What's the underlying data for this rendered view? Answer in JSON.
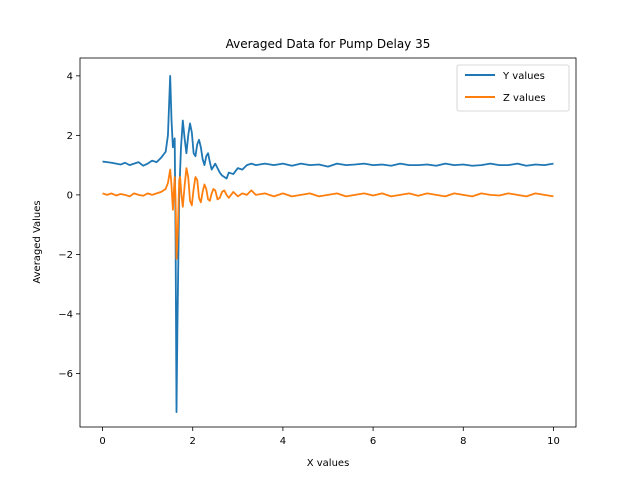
{
  "chart_data": {
    "type": "line",
    "title": "Averaged Data for Pump Delay 35",
    "xlabel": "X values",
    "ylabel": "Averaged Values",
    "xlim": [
      -0.5,
      10.5
    ],
    "ylim": [
      -7.8,
      4.6
    ],
    "xticks": [
      0,
      2,
      4,
      6,
      8,
      10
    ],
    "xtick_labels": [
      "0",
      "2",
      "4",
      "6",
      "8",
      "10"
    ],
    "yticks": [
      -6,
      -4,
      -2,
      0,
      2,
      4
    ],
    "ytick_labels": [
      "−6",
      "−4",
      "−2",
      "0",
      "2",
      "4"
    ],
    "grid": false,
    "legend_position": "top-right",
    "series": [
      {
        "name": "Y values",
        "color": "#1f77b4",
        "points": [
          [
            0.0,
            1.12
          ],
          [
            0.1,
            1.1
          ],
          [
            0.2,
            1.08
          ],
          [
            0.3,
            1.05
          ],
          [
            0.4,
            1.02
          ],
          [
            0.5,
            1.08
          ],
          [
            0.6,
            1.0
          ],
          [
            0.7,
            1.05
          ],
          [
            0.8,
            1.1
          ],
          [
            0.9,
            0.98
          ],
          [
            1.0,
            1.05
          ],
          [
            1.1,
            1.15
          ],
          [
            1.2,
            1.1
          ],
          [
            1.3,
            1.25
          ],
          [
            1.4,
            1.45
          ],
          [
            1.45,
            2.0
          ],
          [
            1.5,
            4.0
          ],
          [
            1.53,
            2.5
          ],
          [
            1.56,
            1.6
          ],
          [
            1.6,
            1.9
          ],
          [
            1.62,
            -1.5
          ],
          [
            1.64,
            -7.3
          ],
          [
            1.66,
            -4.5
          ],
          [
            1.7,
            0.0
          ],
          [
            1.74,
            1.6
          ],
          [
            1.78,
            2.5
          ],
          [
            1.82,
            1.9
          ],
          [
            1.86,
            1.4
          ],
          [
            1.9,
            2.0
          ],
          [
            1.94,
            2.4
          ],
          [
            1.98,
            2.1
          ],
          [
            2.02,
            1.4
          ],
          [
            2.06,
            1.3
          ],
          [
            2.1,
            1.7
          ],
          [
            2.14,
            1.85
          ],
          [
            2.18,
            1.6
          ],
          [
            2.22,
            1.2
          ],
          [
            2.26,
            1.0
          ],
          [
            2.3,
            1.3
          ],
          [
            2.34,
            1.4
          ],
          [
            2.38,
            1.1
          ],
          [
            2.42,
            0.85
          ],
          [
            2.46,
            0.95
          ],
          [
            2.5,
            1.05
          ],
          [
            2.55,
            0.9
          ],
          [
            2.6,
            0.75
          ],
          [
            2.65,
            0.65
          ],
          [
            2.7,
            0.6
          ],
          [
            2.75,
            0.55
          ],
          [
            2.8,
            0.75
          ],
          [
            2.9,
            0.7
          ],
          [
            3.0,
            0.9
          ],
          [
            3.1,
            0.85
          ],
          [
            3.2,
            1.0
          ],
          [
            3.3,
            1.05
          ],
          [
            3.4,
            1.0
          ],
          [
            3.6,
            1.05
          ],
          [
            3.8,
            1.0
          ],
          [
            4.0,
            1.05
          ],
          [
            4.2,
            0.98
          ],
          [
            4.4,
            1.05
          ],
          [
            4.6,
            1.0
          ],
          [
            4.8,
            1.02
          ],
          [
            5.0,
            0.95
          ],
          [
            5.2,
            1.05
          ],
          [
            5.4,
            1.0
          ],
          [
            5.6,
            1.02
          ],
          [
            5.8,
            1.05
          ],
          [
            6.0,
            1.0
          ],
          [
            6.2,
            1.02
          ],
          [
            6.4,
            0.98
          ],
          [
            6.6,
            1.05
          ],
          [
            6.8,
            1.0
          ],
          [
            7.0,
            1.0
          ],
          [
            7.2,
            1.02
          ],
          [
            7.4,
            0.98
          ],
          [
            7.6,
            1.05
          ],
          [
            7.8,
            1.0
          ],
          [
            8.0,
            1.02
          ],
          [
            8.2,
            0.98
          ],
          [
            8.4,
            1.0
          ],
          [
            8.6,
            1.05
          ],
          [
            8.8,
            1.0
          ],
          [
            9.0,
            1.0
          ],
          [
            9.2,
            1.05
          ],
          [
            9.4,
            0.98
          ],
          [
            9.6,
            1.02
          ],
          [
            9.8,
            1.0
          ],
          [
            10.0,
            1.05
          ]
        ]
      },
      {
        "name": "Z values",
        "color": "#ff7f0e",
        "points": [
          [
            0.0,
            0.05
          ],
          [
            0.1,
            0.0
          ],
          [
            0.2,
            0.05
          ],
          [
            0.3,
            -0.02
          ],
          [
            0.4,
            0.03
          ],
          [
            0.5,
            0.0
          ],
          [
            0.6,
            -0.05
          ],
          [
            0.7,
            0.05
          ],
          [
            0.8,
            0.0
          ],
          [
            0.9,
            -0.03
          ],
          [
            1.0,
            0.05
          ],
          [
            1.1,
            0.0
          ],
          [
            1.2,
            0.05
          ],
          [
            1.3,
            0.1
          ],
          [
            1.4,
            0.2
          ],
          [
            1.45,
            0.4
          ],
          [
            1.5,
            0.85
          ],
          [
            1.53,
            0.3
          ],
          [
            1.56,
            -0.5
          ],
          [
            1.6,
            0.6
          ],
          [
            1.62,
            -0.2
          ],
          [
            1.64,
            -2.15
          ],
          [
            1.67,
            -1.2
          ],
          [
            1.7,
            0.5
          ],
          [
            1.72,
            0.6
          ],
          [
            1.75,
            0.0
          ],
          [
            1.78,
            -0.4
          ],
          [
            1.82,
            0.3
          ],
          [
            1.86,
            0.9
          ],
          [
            1.9,
            0.6
          ],
          [
            1.94,
            -0.2
          ],
          [
            1.98,
            -0.35
          ],
          [
            2.02,
            0.2
          ],
          [
            2.06,
            0.6
          ],
          [
            2.1,
            0.5
          ],
          [
            2.14,
            -0.1
          ],
          [
            2.18,
            -0.25
          ],
          [
            2.22,
            0.1
          ],
          [
            2.26,
            0.35
          ],
          [
            2.3,
            0.2
          ],
          [
            2.34,
            -0.15
          ],
          [
            2.38,
            -0.2
          ],
          [
            2.42,
            0.05
          ],
          [
            2.46,
            0.2
          ],
          [
            2.5,
            0.15
          ],
          [
            2.55,
            -0.15
          ],
          [
            2.6,
            -0.1
          ],
          [
            2.65,
            0.1
          ],
          [
            2.7,
            0.15
          ],
          [
            2.75,
            0.0
          ],
          [
            2.8,
            -0.1
          ],
          [
            2.9,
            0.1
          ],
          [
            3.0,
            -0.05
          ],
          [
            3.1,
            0.05
          ],
          [
            3.2,
            0.0
          ],
          [
            3.3,
            0.15
          ],
          [
            3.4,
            0.0
          ],
          [
            3.6,
            0.05
          ],
          [
            3.8,
            -0.05
          ],
          [
            4.0,
            0.05
          ],
          [
            4.2,
            -0.05
          ],
          [
            4.4,
            0.0
          ],
          [
            4.6,
            0.05
          ],
          [
            4.8,
            -0.05
          ],
          [
            5.0,
            0.0
          ],
          [
            5.2,
            0.05
          ],
          [
            5.4,
            -0.05
          ],
          [
            5.6,
            0.0
          ],
          [
            5.8,
            0.05
          ],
          [
            6.0,
            -0.02
          ],
          [
            6.2,
            0.05
          ],
          [
            6.4,
            -0.05
          ],
          [
            6.6,
            0.0
          ],
          [
            6.8,
            0.05
          ],
          [
            7.0,
            -0.03
          ],
          [
            7.2,
            0.05
          ],
          [
            7.4,
            0.0
          ],
          [
            7.6,
            -0.05
          ],
          [
            7.8,
            0.05
          ],
          [
            8.0,
            0.0
          ],
          [
            8.2,
            -0.05
          ],
          [
            8.4,
            0.05
          ],
          [
            8.6,
            0.0
          ],
          [
            8.8,
            -0.02
          ],
          [
            9.0,
            0.05
          ],
          [
            9.2,
            0.0
          ],
          [
            9.4,
            -0.05
          ],
          [
            9.6,
            0.05
          ],
          [
            9.8,
            0.0
          ],
          [
            10.0,
            -0.05
          ]
        ]
      }
    ]
  }
}
